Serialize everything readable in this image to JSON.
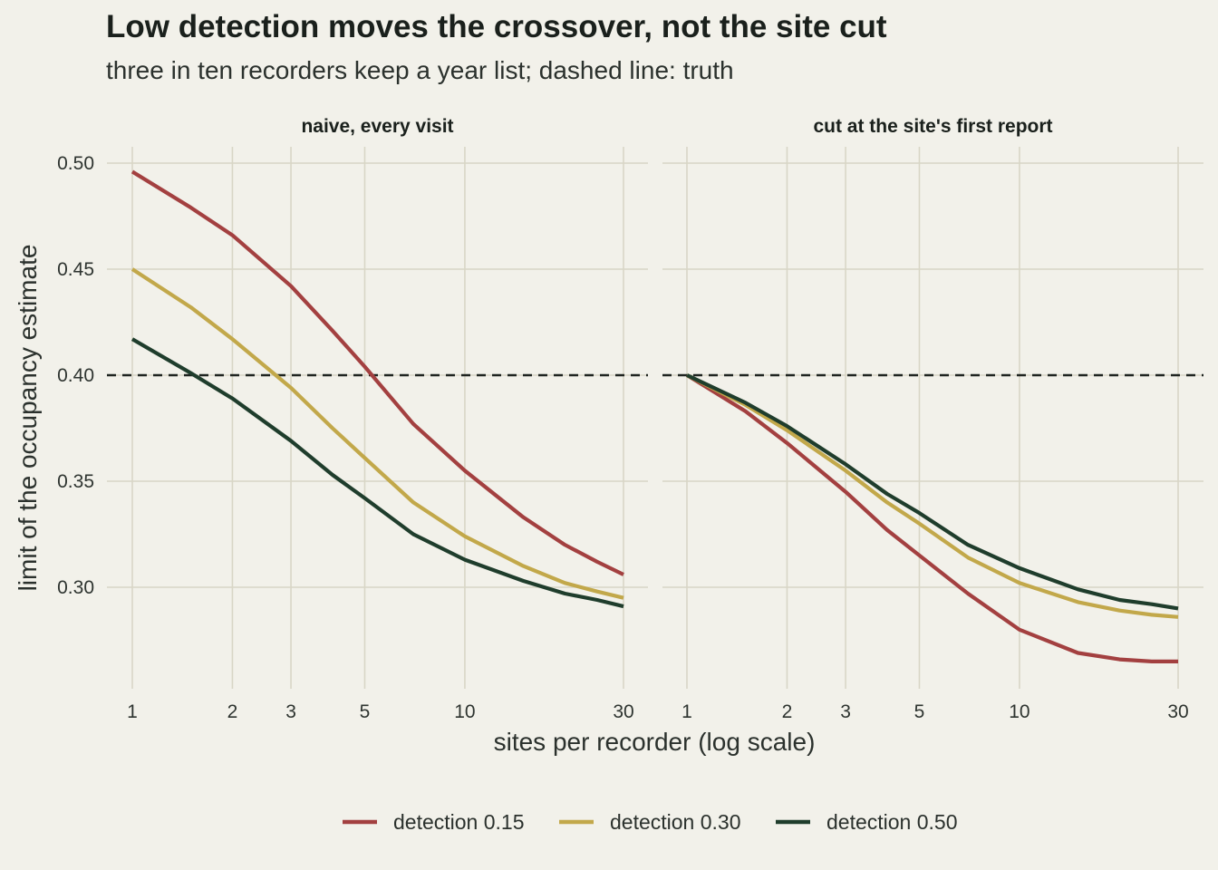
{
  "chart_data": {
    "type": "line",
    "title": "Low detection moves the crossover, not the site cut",
    "subtitle": "three in ten recorders keep a year list; dashed line: truth",
    "xlabel": "sites per recorder (log scale)",
    "ylabel": "limit of the occupancy estimate",
    "x_scale": "log",
    "xlim": [
      1,
      30
    ],
    "ylim": [
      0.256,
      0.507
    ],
    "x_ticks": [
      1,
      2,
      3,
      5,
      10,
      30
    ],
    "x_tick_labels": [
      "1",
      "2",
      "3",
      "5",
      "10",
      "30"
    ],
    "y_ticks": [
      0.3,
      0.35,
      0.4,
      0.45,
      0.5
    ],
    "y_tick_labels": [
      "0.30",
      "0.35",
      "0.40",
      "0.45",
      "0.50"
    ],
    "reference_line": {
      "y": 0.4,
      "style": "dashed",
      "color": "#1f2420"
    },
    "grid": true,
    "legend_position": "bottom",
    "legend": [
      "detection 0.15",
      "detection 0.30",
      "detection 0.50"
    ],
    "colors": {
      "detection 0.15": "#a34040",
      "detection 0.30": "#c2a84a",
      "detection 0.50": "#1f3d2c",
      "background": "#f2f1ea"
    },
    "x": [
      1,
      1.5,
      2,
      3,
      4,
      5,
      7,
      10,
      15,
      20,
      25,
      30
    ],
    "panels": [
      {
        "title": "naive, every visit",
        "series": [
          {
            "name": "detection 0.15",
            "values": [
              0.496,
              0.479,
              0.466,
              0.442,
              0.421,
              0.404,
              0.377,
              0.355,
              0.333,
              0.32,
              0.312,
              0.306
            ]
          },
          {
            "name": "detection 0.30",
            "values": [
              0.45,
              0.432,
              0.417,
              0.394,
              0.375,
              0.361,
              0.34,
              0.324,
              0.31,
              0.302,
              0.298,
              0.295
            ]
          },
          {
            "name": "detection 0.50",
            "values": [
              0.417,
              0.401,
              0.389,
              0.369,
              0.353,
              0.342,
              0.325,
              0.313,
              0.303,
              0.297,
              0.294,
              0.291
            ]
          }
        ]
      },
      {
        "title": "cut at the site's first report",
        "series": [
          {
            "name": "detection 0.15",
            "values": [
              0.4,
              0.383,
              0.368,
              0.345,
              0.327,
              0.315,
              0.297,
              0.28,
              0.269,
              0.266,
              0.265,
              0.265
            ]
          },
          {
            "name": "detection 0.30",
            "values": [
              0.4,
              0.386,
              0.374,
              0.355,
              0.34,
              0.33,
              0.314,
              0.302,
              0.293,
              0.289,
              0.287,
              0.286
            ]
          },
          {
            "name": "detection 0.50",
            "values": [
              0.4,
              0.387,
              0.376,
              0.358,
              0.344,
              0.335,
              0.32,
              0.309,
              0.299,
              0.294,
              0.292,
              0.29
            ]
          }
        ]
      }
    ]
  }
}
